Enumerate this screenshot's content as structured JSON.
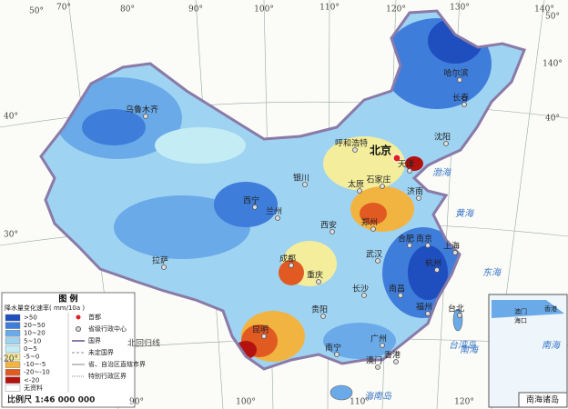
{
  "map": {
    "legend": {
      "title": "图 例",
      "subtitle": "降水量变化速率( mm/10a )",
      "classes": [
        {
          "label": ">50",
          "color": "#1f4fbf"
        },
        {
          "label": "20~50",
          "color": "#3f7ddb"
        },
        {
          "label": "10~20",
          "color": "#6aaae9"
        },
        {
          "label": "5~10",
          "color": "#9fd3f2"
        },
        {
          "label": "0~5",
          "color": "#c4ecf5"
        },
        {
          "label": "-5~0",
          "color": "#f4ee9c"
        },
        {
          "label": "-10~-5",
          "color": "#f2b441"
        },
        {
          "label": "-20~-10",
          "color": "#e05a22"
        },
        {
          "label": "<-20",
          "color": "#b3120f"
        },
        {
          "label": "无资料",
          "color": "#ffffff"
        }
      ],
      "symbols": [
        "首都",
        "省级行政中心",
        "国界",
        "未定国界",
        "省、自治区直辖市界",
        "特别行政区界"
      ]
    },
    "scale": "比例尺 1:46 000 000",
    "inset_title": "南海诸岛",
    "inset_labels": [
      "香港",
      "澳门",
      "海口"
    ],
    "capital": "北京",
    "cities": [
      "天津",
      "石家庄",
      "太原",
      "呼和浩特",
      "沈阳",
      "长春",
      "哈尔滨",
      "乌鲁木齐",
      "西宁",
      "兰州",
      "银川",
      "西安",
      "郑州",
      "济南",
      "南京",
      "合肥",
      "上海",
      "杭州",
      "武汉",
      "长沙",
      "南昌",
      "福州",
      "台北",
      "广州",
      "香港",
      "澳门",
      "南宁",
      "贵阳",
      "昆明",
      "重庆",
      "成都",
      "拉萨"
    ],
    "seas": [
      "渤海",
      "黄海",
      "东海",
      "南海",
      "台湾岛",
      "海南岛",
      "南海"
    ],
    "graticule": [
      "50°",
      "70°",
      "80°",
      "90°",
      "100°",
      "110°",
      "120°",
      "130°",
      "140°",
      "40°",
      "30°",
      "20°",
      "90°",
      "100°",
      "110°",
      "120°",
      "140°",
      "50°",
      "40°"
    ],
    "tropic": "北回归线"
  }
}
